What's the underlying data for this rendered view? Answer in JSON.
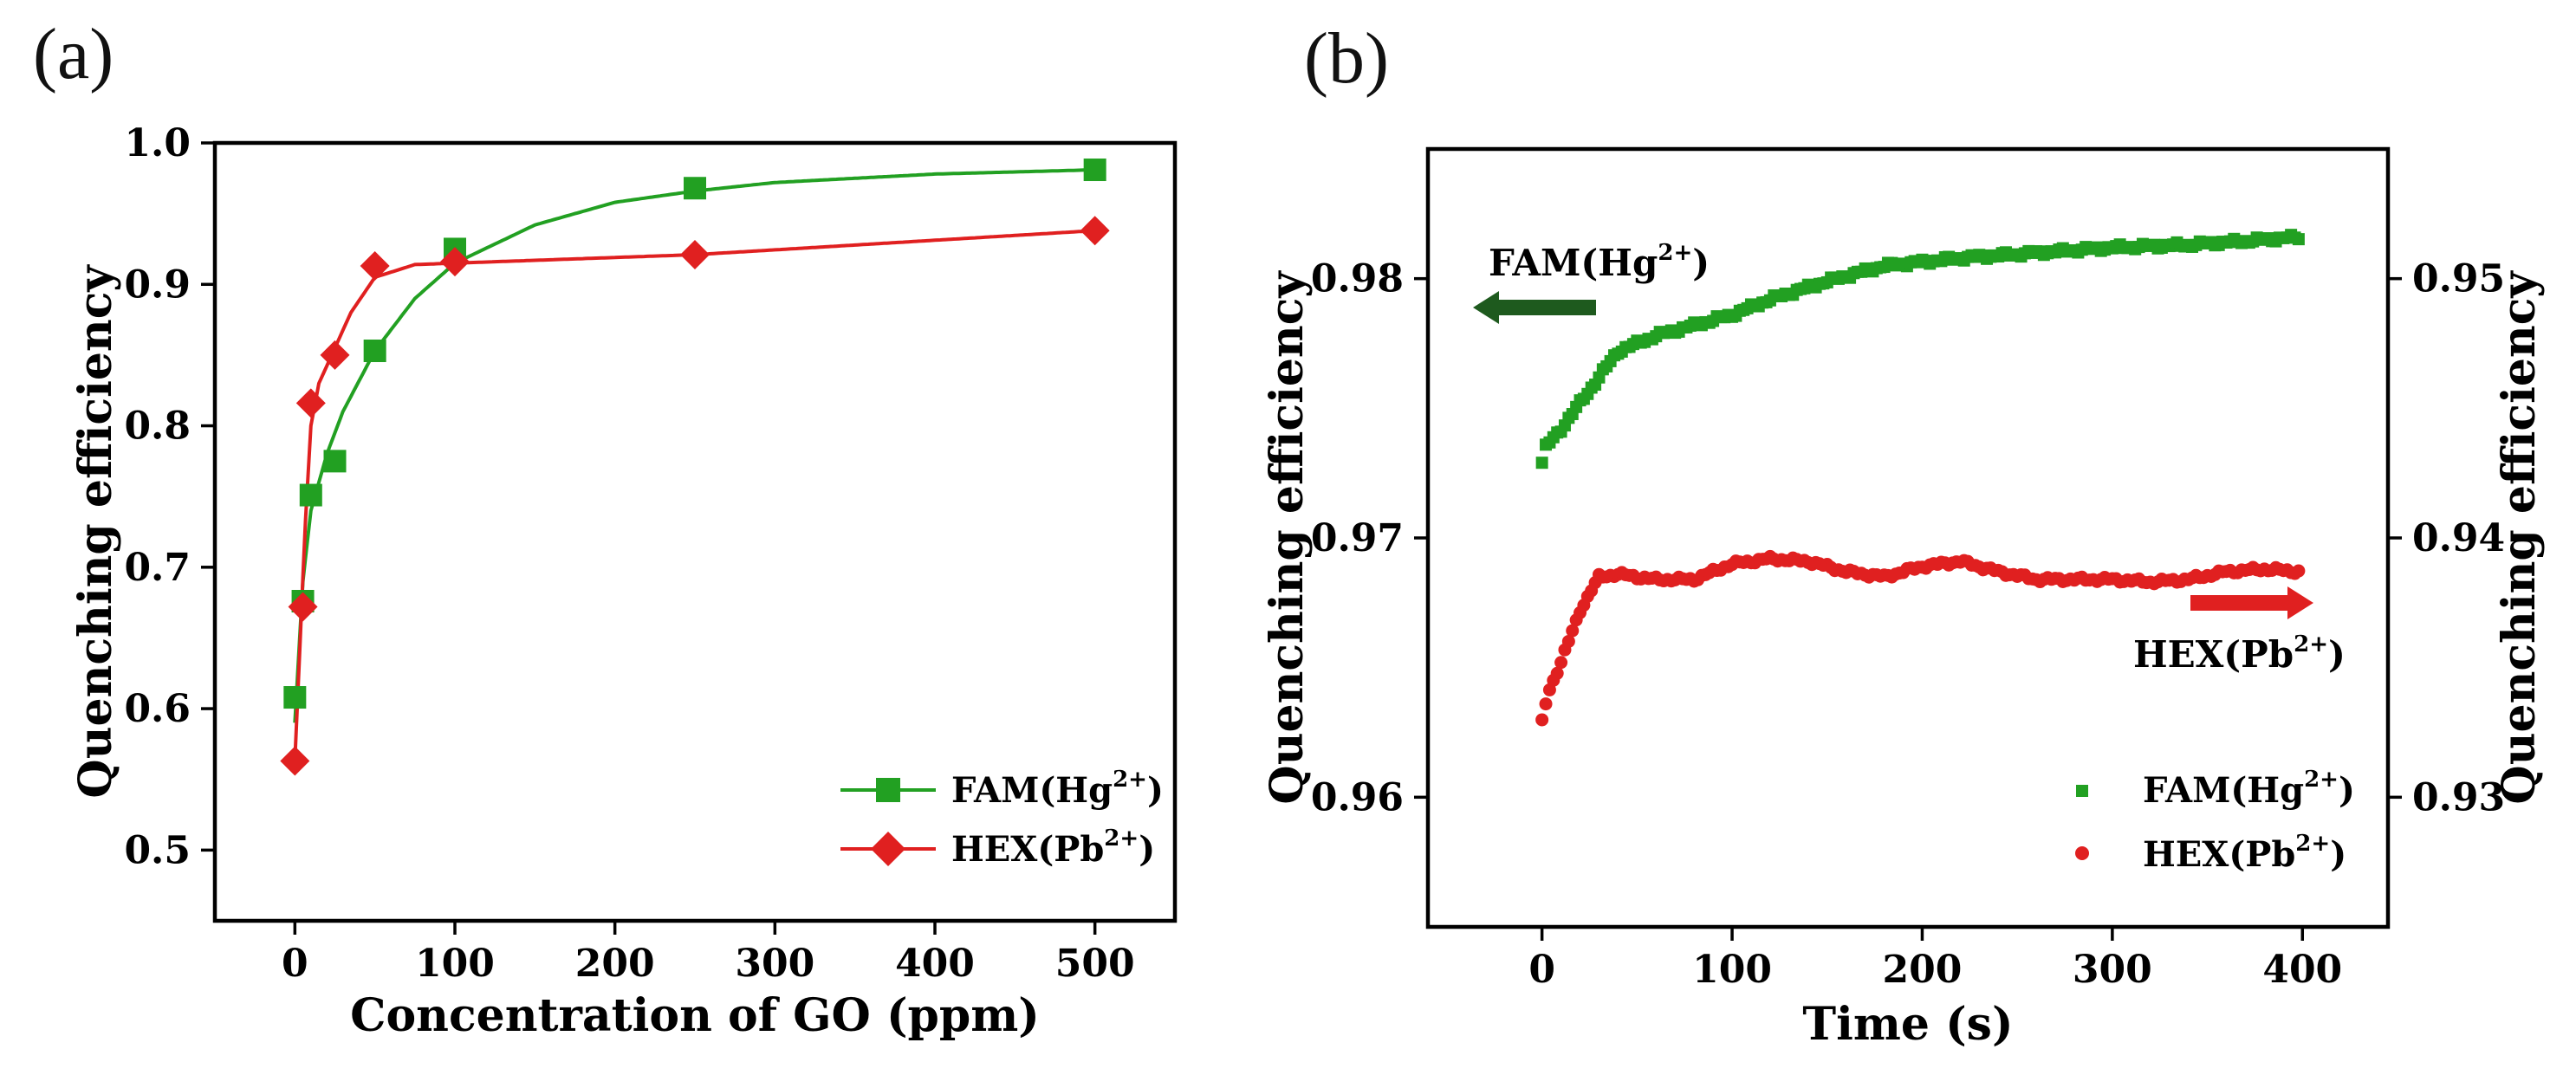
{
  "panel_a_label": "(a)",
  "panel_b_label": "(b)",
  "chart_data": [
    {
      "type": "line",
      "panel": "(a)",
      "xlabel": "Concentration of GO (ppm)",
      "ylabel": "Quenching efficiency",
      "xlim": [
        -50,
        550
      ],
      "ylim": [
        0.45,
        1.0
      ],
      "x_ticks": [
        0,
        100,
        200,
        300,
        400,
        500
      ],
      "y_ticks": [
        0.5,
        0.6,
        0.7,
        0.8,
        0.9,
        1.0
      ],
      "x_tick_labels": [
        "0",
        "100",
        "200",
        "300",
        "400",
        "500"
      ],
      "y_tick_labels": [
        "0.5",
        "0.6",
        "0.7",
        "0.8",
        "0.9",
        "1.0"
      ],
      "legend_position": "lower-right",
      "series": [
        {
          "name": "FAM(Hg2+)",
          "legend_main": "FAM(Hg",
          "legend_sup": "2+",
          "legend_close": ")",
          "color": "#22a022",
          "marker": "square",
          "x": [
            0,
            5,
            10,
            25,
            50,
            100,
            250,
            500
          ],
          "y": [
            0.608,
            0.676,
            0.751,
            0.775,
            0.853,
            0.925,
            0.968,
            0.981
          ],
          "fit": {
            "x": [
              0,
              5,
              10,
              20,
              30,
              50,
              75,
              100,
              150,
              200,
              250,
              300,
              400,
              500
            ],
            "y": [
              0.59,
              0.69,
              0.74,
              0.78,
              0.81,
              0.853,
              0.89,
              0.915,
              0.942,
              0.958,
              0.966,
              0.972,
              0.978,
              0.981
            ]
          }
        },
        {
          "name": "HEX(Pb2+)",
          "legend_main": "HEX(Pb",
          "legend_sup": "2+",
          "legend_close": ")",
          "color": "#e02020",
          "marker": "diamond",
          "x": [
            0,
            5,
            10,
            25,
            50,
            100,
            250,
            500
          ],
          "y": [
            0.563,
            0.672,
            0.816,
            0.85,
            0.913,
            0.916,
            0.921,
            0.938
          ],
          "fit": {
            "x": [
              0,
              3,
              6,
              10,
              15,
              25,
              35,
              50,
              75,
              100,
              250,
              500
            ],
            "y": [
              0.563,
              0.64,
              0.72,
              0.8,
              0.83,
              0.855,
              0.88,
              0.905,
              0.914,
              0.915,
              0.921,
              0.938
            ]
          }
        }
      ]
    },
    {
      "type": "scatter",
      "panel": "(b)",
      "xlabel": "Time (s)",
      "ylabel": "Quenching efficiency",
      "ylabel_right": "Quenching efficiency",
      "xlim": [
        -60,
        445
      ],
      "ylim": [
        0.955,
        0.985
      ],
      "ylim_right": [
        0.925,
        0.955
      ],
      "x_ticks": [
        0,
        100,
        200,
        300,
        400
      ],
      "y_ticks": [
        0.96,
        0.97,
        0.98
      ],
      "y_ticks_right": [
        0.93,
        0.94,
        0.95
      ],
      "x_tick_labels": [
        "0",
        "100",
        "200",
        "300",
        "400"
      ],
      "y_tick_labels": [
        "0.96",
        "0.97",
        "0.98"
      ],
      "y_tick_labels_right": [
        "0.93",
        "0.94",
        "0.95"
      ],
      "legend_position": "lower-right",
      "series": [
        {
          "name": "FAM(Hg2+)",
          "legend_main": "FAM(Hg",
          "legend_sup": "2+",
          "legend_close": ")",
          "axis": "left",
          "color": "#22a022",
          "marker": "square",
          "curve": {
            "t": [
              0,
              2,
              10,
              20,
              30,
              40,
              60,
              80,
              100,
              120,
              150,
              180,
              220,
              260,
              300,
              340,
              380,
              398
            ],
            "y": [
              0.9729,
              0.9735,
              0.9742,
              0.9752,
              0.9762,
              0.9772,
              0.9778,
              0.9782,
              0.9786,
              0.9792,
              0.9799,
              0.9805,
              0.9808,
              0.981,
              0.9812,
              0.9813,
              0.9815,
              0.9816
            ]
          }
        },
        {
          "name": "HEX(Pb2+)",
          "legend_main": "HEX(Pb",
          "legend_sup": "2+",
          "legend_close": ")",
          "axis": "right",
          "color": "#e02020",
          "marker": "circle",
          "curve": {
            "t": [
              0,
              3,
              10,
              20,
              30,
              40,
              60,
              80,
              100,
              120,
              140,
              160,
              180,
              200,
              220,
              240,
              260,
              280,
              300,
              320,
              340,
              360,
              380,
              398
            ],
            "y": [
              0.9329,
              0.934,
              0.9352,
              0.9372,
              0.9385,
              0.9386,
              0.9384,
              0.9384,
              0.939,
              0.9392,
              0.9391,
              0.9387,
              0.9385,
              0.9389,
              0.9391,
              0.9387,
              0.9384,
              0.9384,
              0.9384,
              0.9383,
              0.9384,
              0.9387,
              0.9388,
              0.9387
            ]
          }
        }
      ],
      "annotations": [
        {
          "text_main": "FAM(Hg",
          "text_sup": "2+",
          "text_close": ")",
          "arrow": "left",
          "color": "#1e5a1e"
        },
        {
          "text_main": "HEX(Pb",
          "text_sup": "2+",
          "text_close": ")",
          "arrow": "right",
          "color": "#e02020"
        }
      ]
    }
  ]
}
